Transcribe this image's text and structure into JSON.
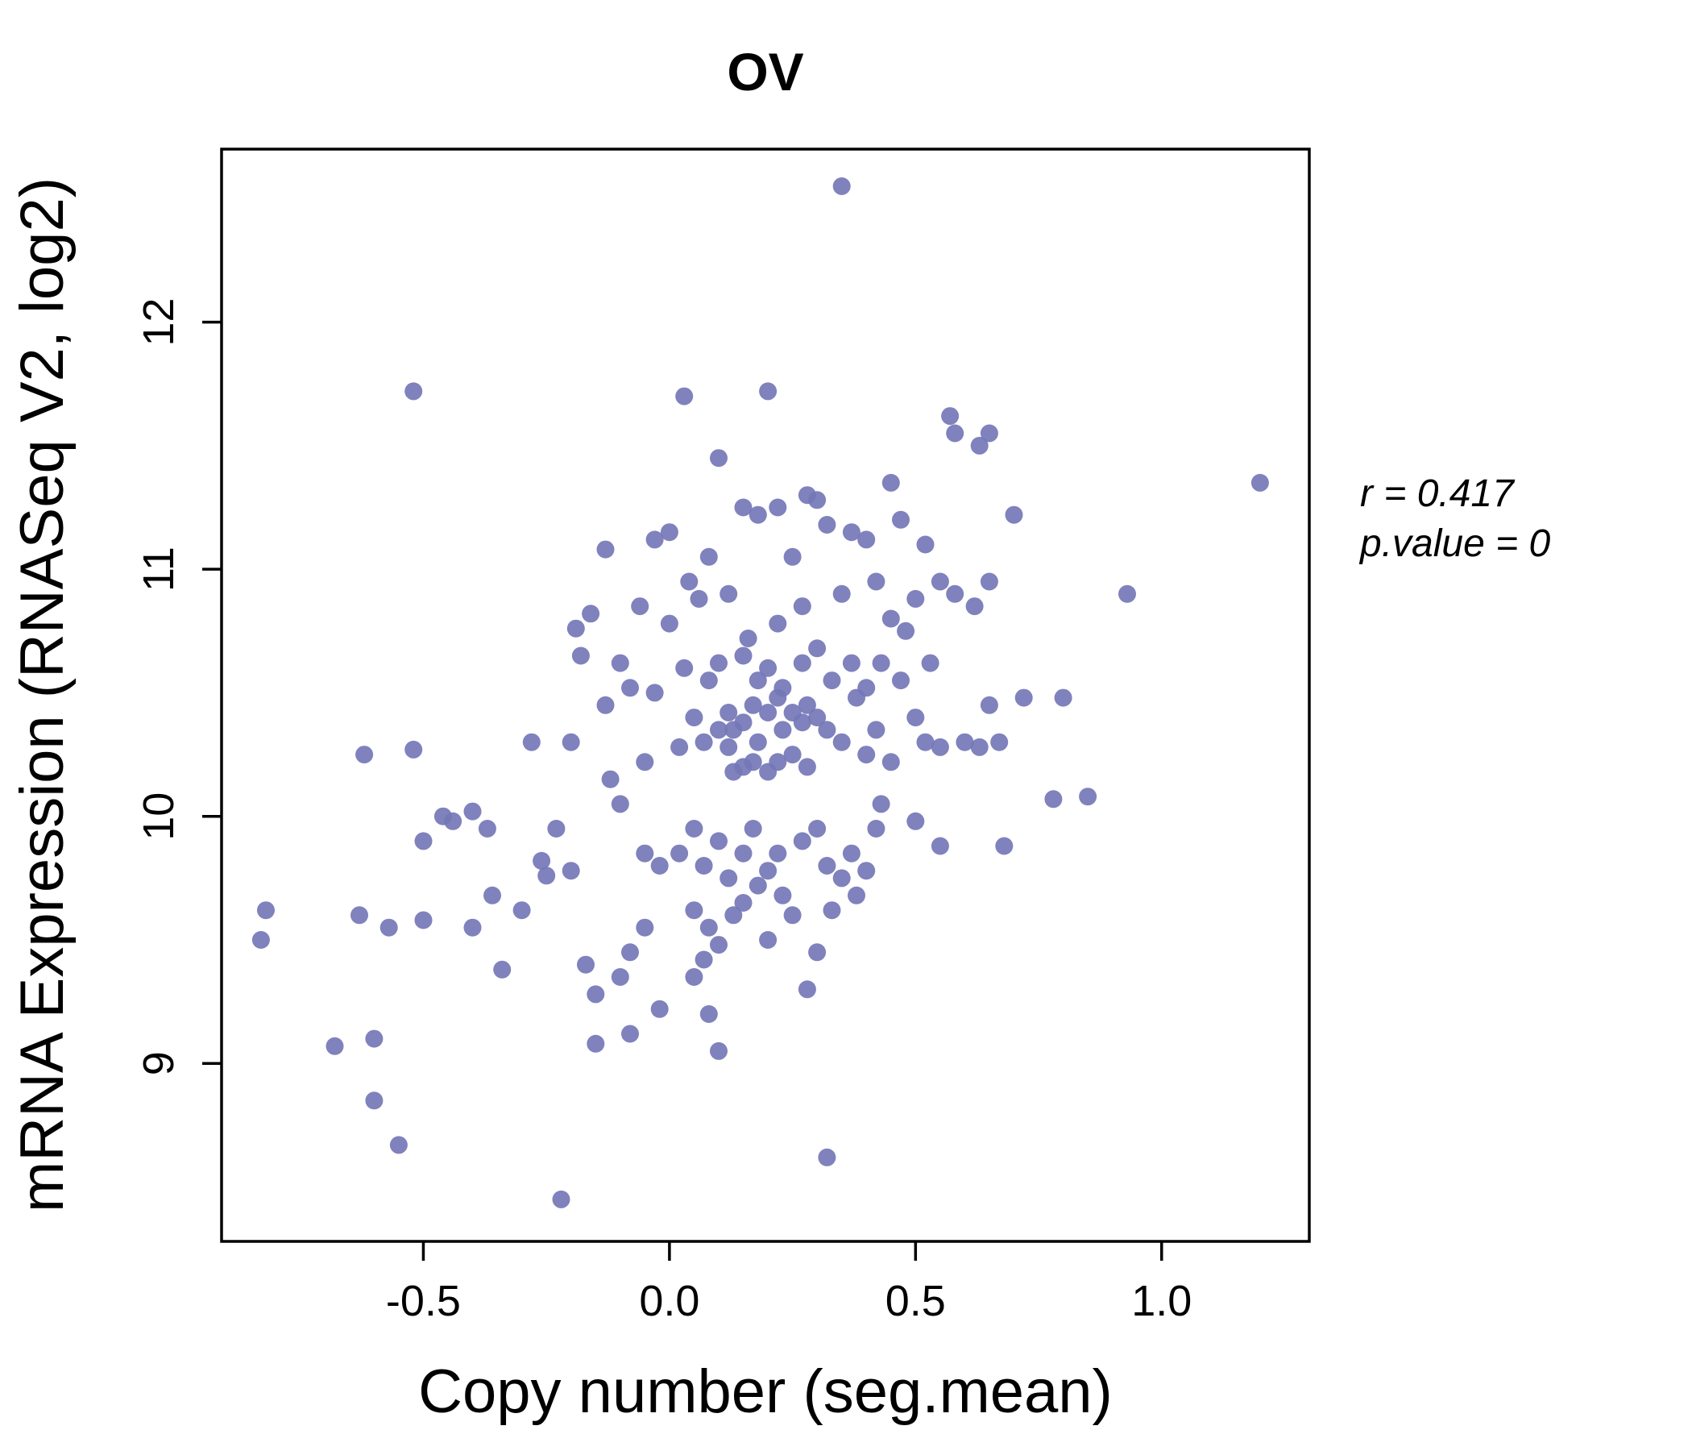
{
  "title": "OV",
  "annotation": {
    "line1": "r = 0.417",
    "line2": "p.value = 0"
  },
  "chart_data": {
    "type": "scatter",
    "title": "OV",
    "xlabel": "Copy number (seg.mean)",
    "ylabel": "mRNA Expression (RNASeq V2, log2)",
    "xlim": [
      -0.91,
      1.3
    ],
    "ylim": [
      8.28,
      12.7
    ],
    "xticks": [
      -0.5,
      0.0,
      0.5,
      1.0
    ],
    "xtick_labels": [
      "-0.5",
      "0.0",
      "0.5",
      "1.0"
    ],
    "yticks": [
      9,
      10,
      11,
      12
    ],
    "ytick_labels": [
      "9",
      "10",
      "11",
      "12"
    ],
    "grid": false,
    "legend": "none",
    "point_color": "#7477b6",
    "title_color": "#7478b7",
    "annotations": [
      "r = 0.417",
      "p.value = 0"
    ],
    "points": [
      [
        -0.82,
        9.62
      ],
      [
        -0.83,
        9.5
      ],
      [
        -0.68,
        9.07
      ],
      [
        -0.63,
        9.6
      ],
      [
        -0.62,
        10.25
      ],
      [
        -0.6,
        9.1
      ],
      [
        -0.6,
        8.85
      ],
      [
        -0.57,
        9.55
      ],
      [
        -0.55,
        8.67
      ],
      [
        -0.52,
        11.72
      ],
      [
        -0.52,
        10.27
      ],
      [
        -0.5,
        9.9
      ],
      [
        -0.5,
        9.58
      ],
      [
        -0.46,
        10.0
      ],
      [
        -0.44,
        9.98
      ],
      [
        -0.4,
        10.02
      ],
      [
        -0.4,
        9.55
      ],
      [
        -0.37,
        9.95
      ],
      [
        -0.36,
        9.68
      ],
      [
        -0.34,
        9.38
      ],
      [
        -0.3,
        9.62
      ],
      [
        -0.28,
        10.3
      ],
      [
        -0.26,
        9.82
      ],
      [
        -0.25,
        9.76
      ],
      [
        -0.23,
        9.95
      ],
      [
        -0.22,
        8.45
      ],
      [
        -0.2,
        10.3
      ],
      [
        -0.2,
        9.78
      ],
      [
        -0.19,
        10.76
      ],
      [
        -0.18,
        10.65
      ],
      [
        -0.17,
        9.4
      ],
      [
        -0.16,
        10.82
      ],
      [
        -0.15,
        9.28
      ],
      [
        -0.15,
        9.08
      ],
      [
        -0.13,
        11.08
      ],
      [
        -0.13,
        10.45
      ],
      [
        -0.12,
        10.15
      ],
      [
        -0.1,
        10.62
      ],
      [
        -0.1,
        10.05
      ],
      [
        -0.1,
        9.35
      ],
      [
        -0.08,
        10.52
      ],
      [
        -0.08,
        9.45
      ],
      [
        -0.08,
        9.12
      ],
      [
        -0.06,
        10.85
      ],
      [
        -0.05,
        10.22
      ],
      [
        -0.05,
        9.85
      ],
      [
        -0.05,
        9.55
      ],
      [
        -0.03,
        11.12
      ],
      [
        -0.03,
        10.5
      ],
      [
        -0.02,
        9.8
      ],
      [
        -0.02,
        9.22
      ],
      [
        0.0,
        11.15
      ],
      [
        0.0,
        10.78
      ],
      [
        0.02,
        10.28
      ],
      [
        0.02,
        9.85
      ],
      [
        0.03,
        11.7
      ],
      [
        0.03,
        10.6
      ],
      [
        0.04,
        10.95
      ],
      [
        0.05,
        10.4
      ],
      [
        0.05,
        9.95
      ],
      [
        0.05,
        9.62
      ],
      [
        0.05,
        9.35
      ],
      [
        0.06,
        10.88
      ],
      [
        0.07,
        10.3
      ],
      [
        0.07,
        9.8
      ],
      [
        0.07,
        9.42
      ],
      [
        0.08,
        11.05
      ],
      [
        0.08,
        10.55
      ],
      [
        0.08,
        9.55
      ],
      [
        0.08,
        9.2
      ],
      [
        0.1,
        11.45
      ],
      [
        0.1,
        10.62
      ],
      [
        0.1,
        10.35
      ],
      [
        0.1,
        9.9
      ],
      [
        0.1,
        9.48
      ],
      [
        0.1,
        9.05
      ],
      [
        0.12,
        10.9
      ],
      [
        0.12,
        10.42
      ],
      [
        0.12,
        10.28
      ],
      [
        0.12,
        9.75
      ],
      [
        0.13,
        10.35
      ],
      [
        0.13,
        10.18
      ],
      [
        0.13,
        9.6
      ],
      [
        0.15,
        11.25
      ],
      [
        0.15,
        10.65
      ],
      [
        0.15,
        10.38
      ],
      [
        0.15,
        10.2
      ],
      [
        0.15,
        9.85
      ],
      [
        0.15,
        9.65
      ],
      [
        0.16,
        10.72
      ],
      [
        0.17,
        10.45
      ],
      [
        0.17,
        10.22
      ],
      [
        0.17,
        9.95
      ],
      [
        0.18,
        11.22
      ],
      [
        0.18,
        10.55
      ],
      [
        0.18,
        10.3
      ],
      [
        0.18,
        9.72
      ],
      [
        0.2,
        11.72
      ],
      [
        0.2,
        10.6
      ],
      [
        0.2,
        10.42
      ],
      [
        0.2,
        10.18
      ],
      [
        0.2,
        9.78
      ],
      [
        0.2,
        9.5
      ],
      [
        0.22,
        11.25
      ],
      [
        0.22,
        10.78
      ],
      [
        0.22,
        10.48
      ],
      [
        0.22,
        10.22
      ],
      [
        0.22,
        9.85
      ],
      [
        0.23,
        10.52
      ],
      [
        0.23,
        10.35
      ],
      [
        0.23,
        9.68
      ],
      [
        0.25,
        11.05
      ],
      [
        0.25,
        10.42
      ],
      [
        0.25,
        10.25
      ],
      [
        0.25,
        9.6
      ],
      [
        0.27,
        10.85
      ],
      [
        0.27,
        10.62
      ],
      [
        0.27,
        10.38
      ],
      [
        0.27,
        9.9
      ],
      [
        0.28,
        11.3
      ],
      [
        0.28,
        10.45
      ],
      [
        0.28,
        10.2
      ],
      [
        0.28,
        9.3
      ],
      [
        0.3,
        11.28
      ],
      [
        0.3,
        10.68
      ],
      [
        0.3,
        10.4
      ],
      [
        0.3,
        9.95
      ],
      [
        0.3,
        9.45
      ],
      [
        0.32,
        11.18
      ],
      [
        0.32,
        10.35
      ],
      [
        0.32,
        9.8
      ],
      [
        0.32,
        8.62
      ],
      [
        0.33,
        10.55
      ],
      [
        0.33,
        9.62
      ],
      [
        0.35,
        12.55
      ],
      [
        0.35,
        10.9
      ],
      [
        0.35,
        10.3
      ],
      [
        0.35,
        9.75
      ],
      [
        0.37,
        11.15
      ],
      [
        0.37,
        10.62
      ],
      [
        0.37,
        9.85
      ],
      [
        0.38,
        10.48
      ],
      [
        0.38,
        9.68
      ],
      [
        0.4,
        11.12
      ],
      [
        0.4,
        10.52
      ],
      [
        0.4,
        10.25
      ],
      [
        0.4,
        9.78
      ],
      [
        0.42,
        10.95
      ],
      [
        0.42,
        10.35
      ],
      [
        0.42,
        9.95
      ],
      [
        0.43,
        10.62
      ],
      [
        0.43,
        10.05
      ],
      [
        0.45,
        11.35
      ],
      [
        0.45,
        10.8
      ],
      [
        0.45,
        10.22
      ],
      [
        0.47,
        11.2
      ],
      [
        0.47,
        10.55
      ],
      [
        0.48,
        10.75
      ],
      [
        0.5,
        10.88
      ],
      [
        0.5,
        10.4
      ],
      [
        0.5,
        9.98
      ],
      [
        0.52,
        11.1
      ],
      [
        0.52,
        10.3
      ],
      [
        0.53,
        10.62
      ],
      [
        0.55,
        10.95
      ],
      [
        0.55,
        10.28
      ],
      [
        0.55,
        9.88
      ],
      [
        0.57,
        11.62
      ],
      [
        0.58,
        11.55
      ],
      [
        0.58,
        10.9
      ],
      [
        0.6,
        10.3
      ],
      [
        0.62,
        10.85
      ],
      [
        0.63,
        11.5
      ],
      [
        0.63,
        10.28
      ],
      [
        0.65,
        11.55
      ],
      [
        0.65,
        10.95
      ],
      [
        0.65,
        10.45
      ],
      [
        0.67,
        10.3
      ],
      [
        0.68,
        9.88
      ],
      [
        0.7,
        11.22
      ],
      [
        0.72,
        10.48
      ],
      [
        0.78,
        10.07
      ],
      [
        0.8,
        10.48
      ],
      [
        0.85,
        10.08
      ],
      [
        0.93,
        10.9
      ],
      [
        1.2,
        11.35
      ]
    ]
  }
}
